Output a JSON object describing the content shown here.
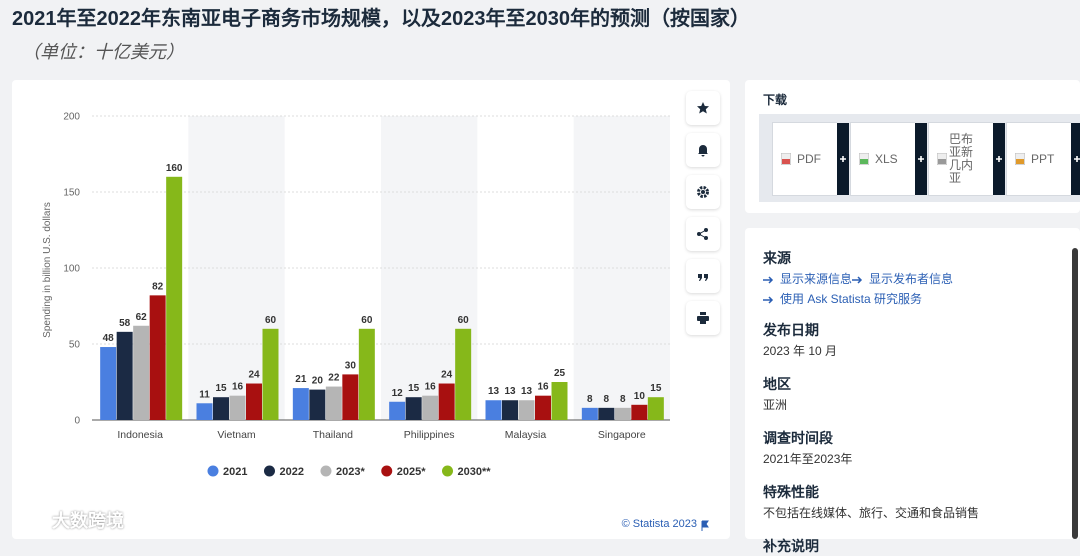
{
  "header": {
    "title": "2021年至2022年东南亚电子商务市场规模，以及2023年至2030年的预测（按国家）",
    "subtitle": "（单位：十亿美元）"
  },
  "chart_data": {
    "type": "bar",
    "y_label": "Spending in billion U.S. dollars",
    "categories": [
      "Indonesia",
      "Vietnam",
      "Thailand",
      "Philippines",
      "Malaysia",
      "Singapore"
    ],
    "series": [
      {
        "name": "2021",
        "color": "#4a7fe0",
        "values": [
          48,
          11,
          21,
          12,
          13,
          8
        ]
      },
      {
        "name": "2022",
        "color": "#1b2a44",
        "values": [
          58,
          15,
          20,
          15,
          13,
          8
        ]
      },
      {
        "name": "2023*",
        "color": "#b5b5b5",
        "values": [
          62,
          16,
          22,
          16,
          13,
          8
        ]
      },
      {
        "name": "2025*",
        "color": "#a81010",
        "values": [
          82,
          24,
          30,
          24,
          16,
          10
        ]
      },
      {
        "name": "2030**",
        "color": "#86b81a",
        "values": [
          160,
          60,
          60,
          60,
          25,
          15
        ]
      }
    ],
    "ylim": [
      0,
      200
    ],
    "yticks": [
      0,
      50,
      100,
      150,
      200
    ],
    "grid": true,
    "legend": "bottom",
    "credit": "© Statista 2023"
  },
  "download": {
    "title": "下载",
    "buttons": [
      "PDF",
      "XLS",
      "巴布亚新几内亚",
      "PPT"
    ]
  },
  "info": {
    "sections": [
      {
        "heading": "来源",
        "links": [
          "显示来源信息",
          "显示发布者信息",
          "使用 Ask Statista 研究服务"
        ]
      },
      {
        "heading": "发布日期",
        "text": "2023 年 10 月"
      },
      {
        "heading": "地区",
        "text": "亚洲"
      },
      {
        "heading": "调查时间段",
        "text": "2021年至2023年"
      },
      {
        "heading": "特殊性能",
        "text": "不包括在线媒体、旅行、交通和食品销售"
      },
      {
        "heading": "补充说明"
      }
    ]
  },
  "watermark": "大数跨境"
}
